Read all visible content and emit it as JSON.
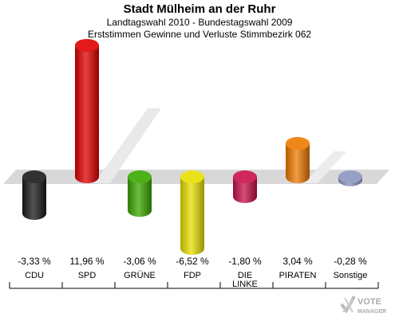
{
  "title": "Stadt Mülheim an der Ruhr",
  "subtitle1": "Landtagswahl 2010 - Bundestagswahl 2009",
  "subtitle2": "Erststimmen Gewinne und Verluste Stimmbezirk 062",
  "chart_data": {
    "type": "bar",
    "categories": [
      "CDU",
      "SPD",
      "GRÜNE",
      "FDP",
      "DIE LINKE",
      "PIRATEN",
      "Sonstige"
    ],
    "values": [
      -3.33,
      11.96,
      -3.06,
      -6.52,
      -1.8,
      3.04,
      -0.28
    ],
    "value_labels": [
      "-3,33 %",
      "11,96 %",
      "-3,06 %",
      "-6,52 %",
      "-1,80 %",
      "3,04 %",
      "-0,28 %"
    ],
    "colors": [
      "#1a1a1a",
      "#e00000",
      "#3aa800",
      "#e8e000",
      "#c8104a",
      "#ee7a00",
      "#8a94c0"
    ]
  },
  "logo": {
    "line1": "VOTE",
    "line2": "MANAGER",
    "icon": "checkmark-x-icon"
  }
}
